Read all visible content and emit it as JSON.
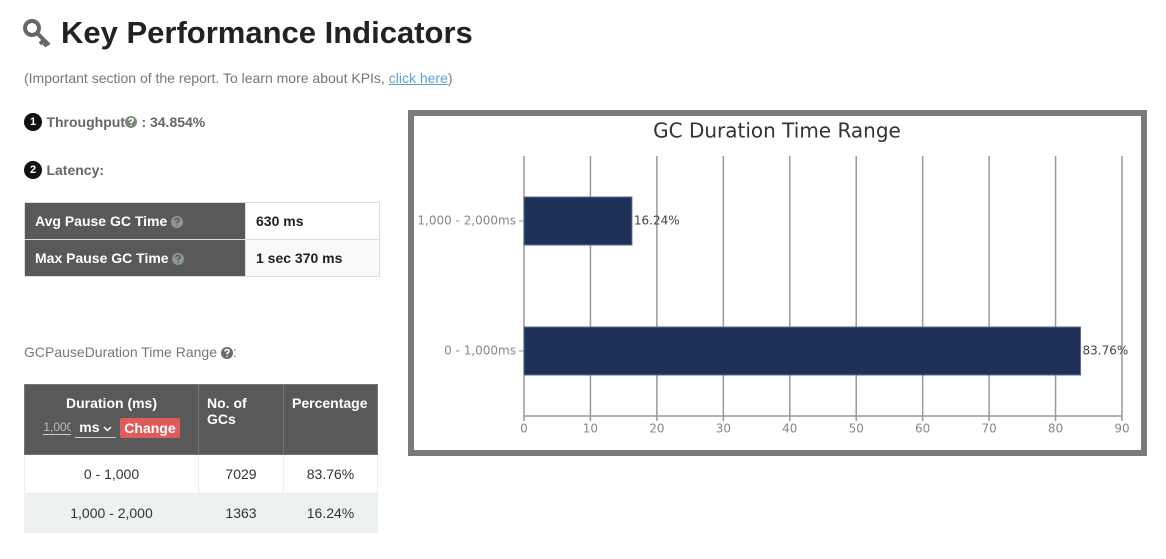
{
  "header": {
    "title": "Key Performance Indicators",
    "note_prefix": "(Important section of the report. To learn more about KPIs, ",
    "note_link": "click here",
    "note_suffix": ")"
  },
  "throughput": {
    "number": "1",
    "label": "Throughput",
    "value": ": 34.854%"
  },
  "latency": {
    "number": "2",
    "label": "Latency:",
    "rows": [
      [
        "Avg Pause GC Time",
        "630 ms"
      ],
      [
        "Max Pause GC Time",
        "1 sec 370 ms"
      ]
    ]
  },
  "gc_table": {
    "caption": "GCPauseDuration Time Range",
    "caption_suffix": ":",
    "headers": [
      "Duration (ms)",
      "No. of GCs",
      "Percentage"
    ],
    "input_placeholder": "1,000",
    "unit": "ms",
    "button": "Change",
    "rows": [
      [
        "0 - 1,000",
        "7029",
        "83.76%"
      ],
      [
        "1,000 - 2,000",
        "1363",
        "16.24%"
      ]
    ]
  },
  "chart_data": {
    "type": "hbar",
    "title": "GC Duration Time Range",
    "categories": [
      "1,000 - 2,000ms",
      "0 - 1,000ms"
    ],
    "values": [
      16.24,
      83.76
    ],
    "value_labels": [
      "16.24%",
      "83.76%"
    ],
    "color": "#1e3158",
    "xlim": [
      0,
      90
    ],
    "xticks": [
      0,
      10,
      20,
      30,
      40,
      50,
      60,
      70,
      80,
      90
    ],
    "grid": true
  }
}
